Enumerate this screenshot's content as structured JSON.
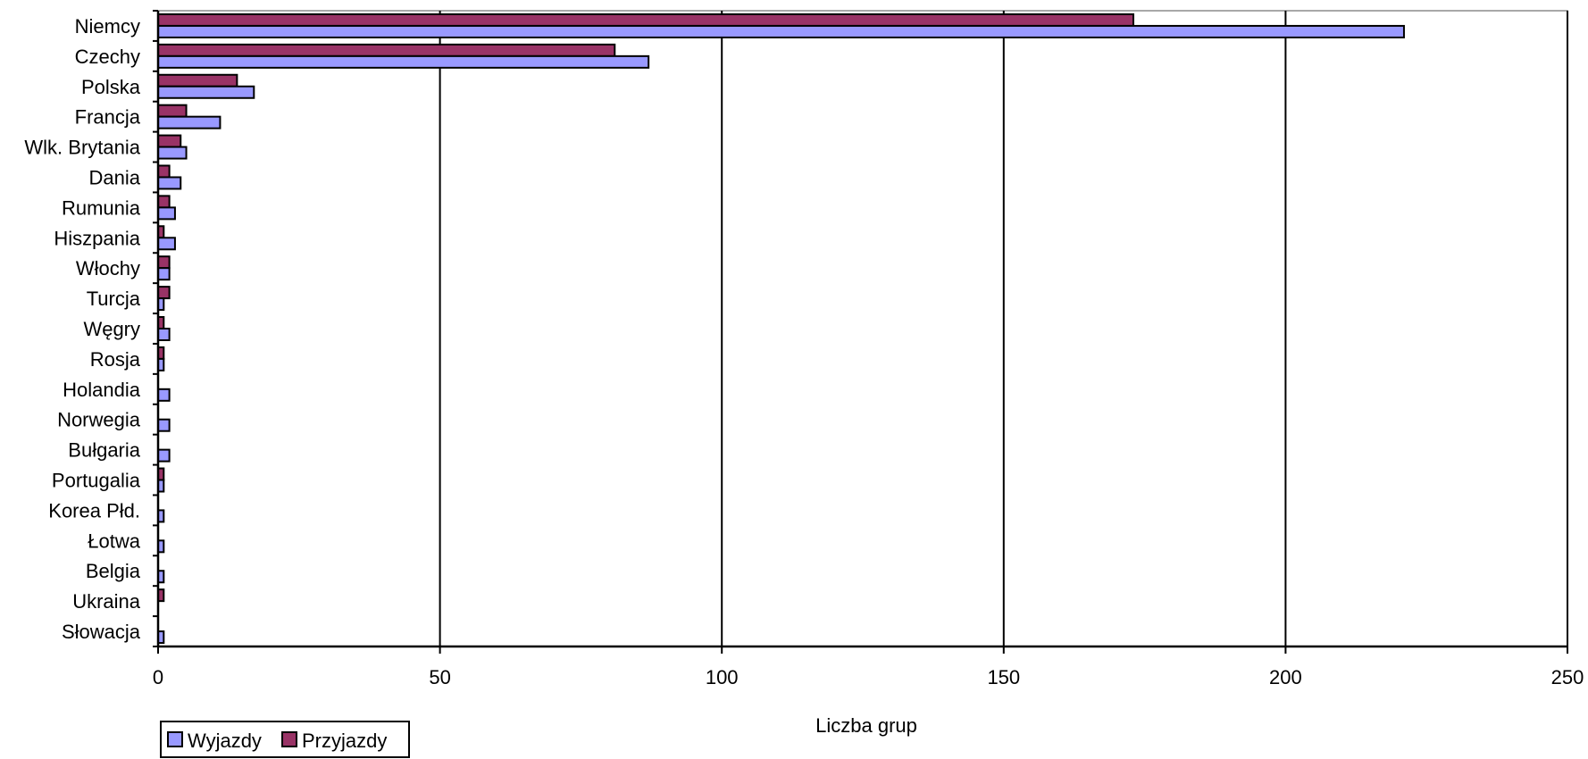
{
  "chart_data": {
    "type": "bar",
    "orientation": "horizontal",
    "categories": [
      "Niemcy",
      "Czechy",
      "Polska",
      "Francja",
      "Wlk. Brytania",
      "Dania",
      "Rumunia",
      "Hiszpania",
      "Włochy",
      "Turcja",
      "Węgry",
      "Rosja",
      "Holandia",
      "Norwegia",
      "Bułgaria",
      "Portugalia",
      "Korea Płd.",
      "Łotwa",
      "Belgia",
      "Ukraina",
      "Słowacja"
    ],
    "series": [
      {
        "name": "Wyjazdy",
        "color": "#9999ff",
        "values": [
          221,
          87,
          17,
          11,
          5,
          4,
          3,
          3,
          2,
          1,
          2,
          1,
          2,
          2,
          2,
          1,
          1,
          1,
          1,
          0,
          1
        ]
      },
      {
        "name": "Przyjazdy",
        "color": "#993366",
        "values": [
          173,
          81,
          14,
          5,
          4,
          2,
          2,
          1,
          2,
          2,
          1,
          1,
          0,
          0,
          0,
          1,
          0,
          0,
          0,
          1,
          0
        ]
      }
    ],
    "xlabel": "Liczba grup",
    "ylabel": "",
    "xlim": [
      0,
      250
    ],
    "xticks": [
      "0",
      "50",
      "100",
      "150",
      "200",
      "250"
    ],
    "grid": "vertical",
    "legend_position": "bottom-left"
  }
}
